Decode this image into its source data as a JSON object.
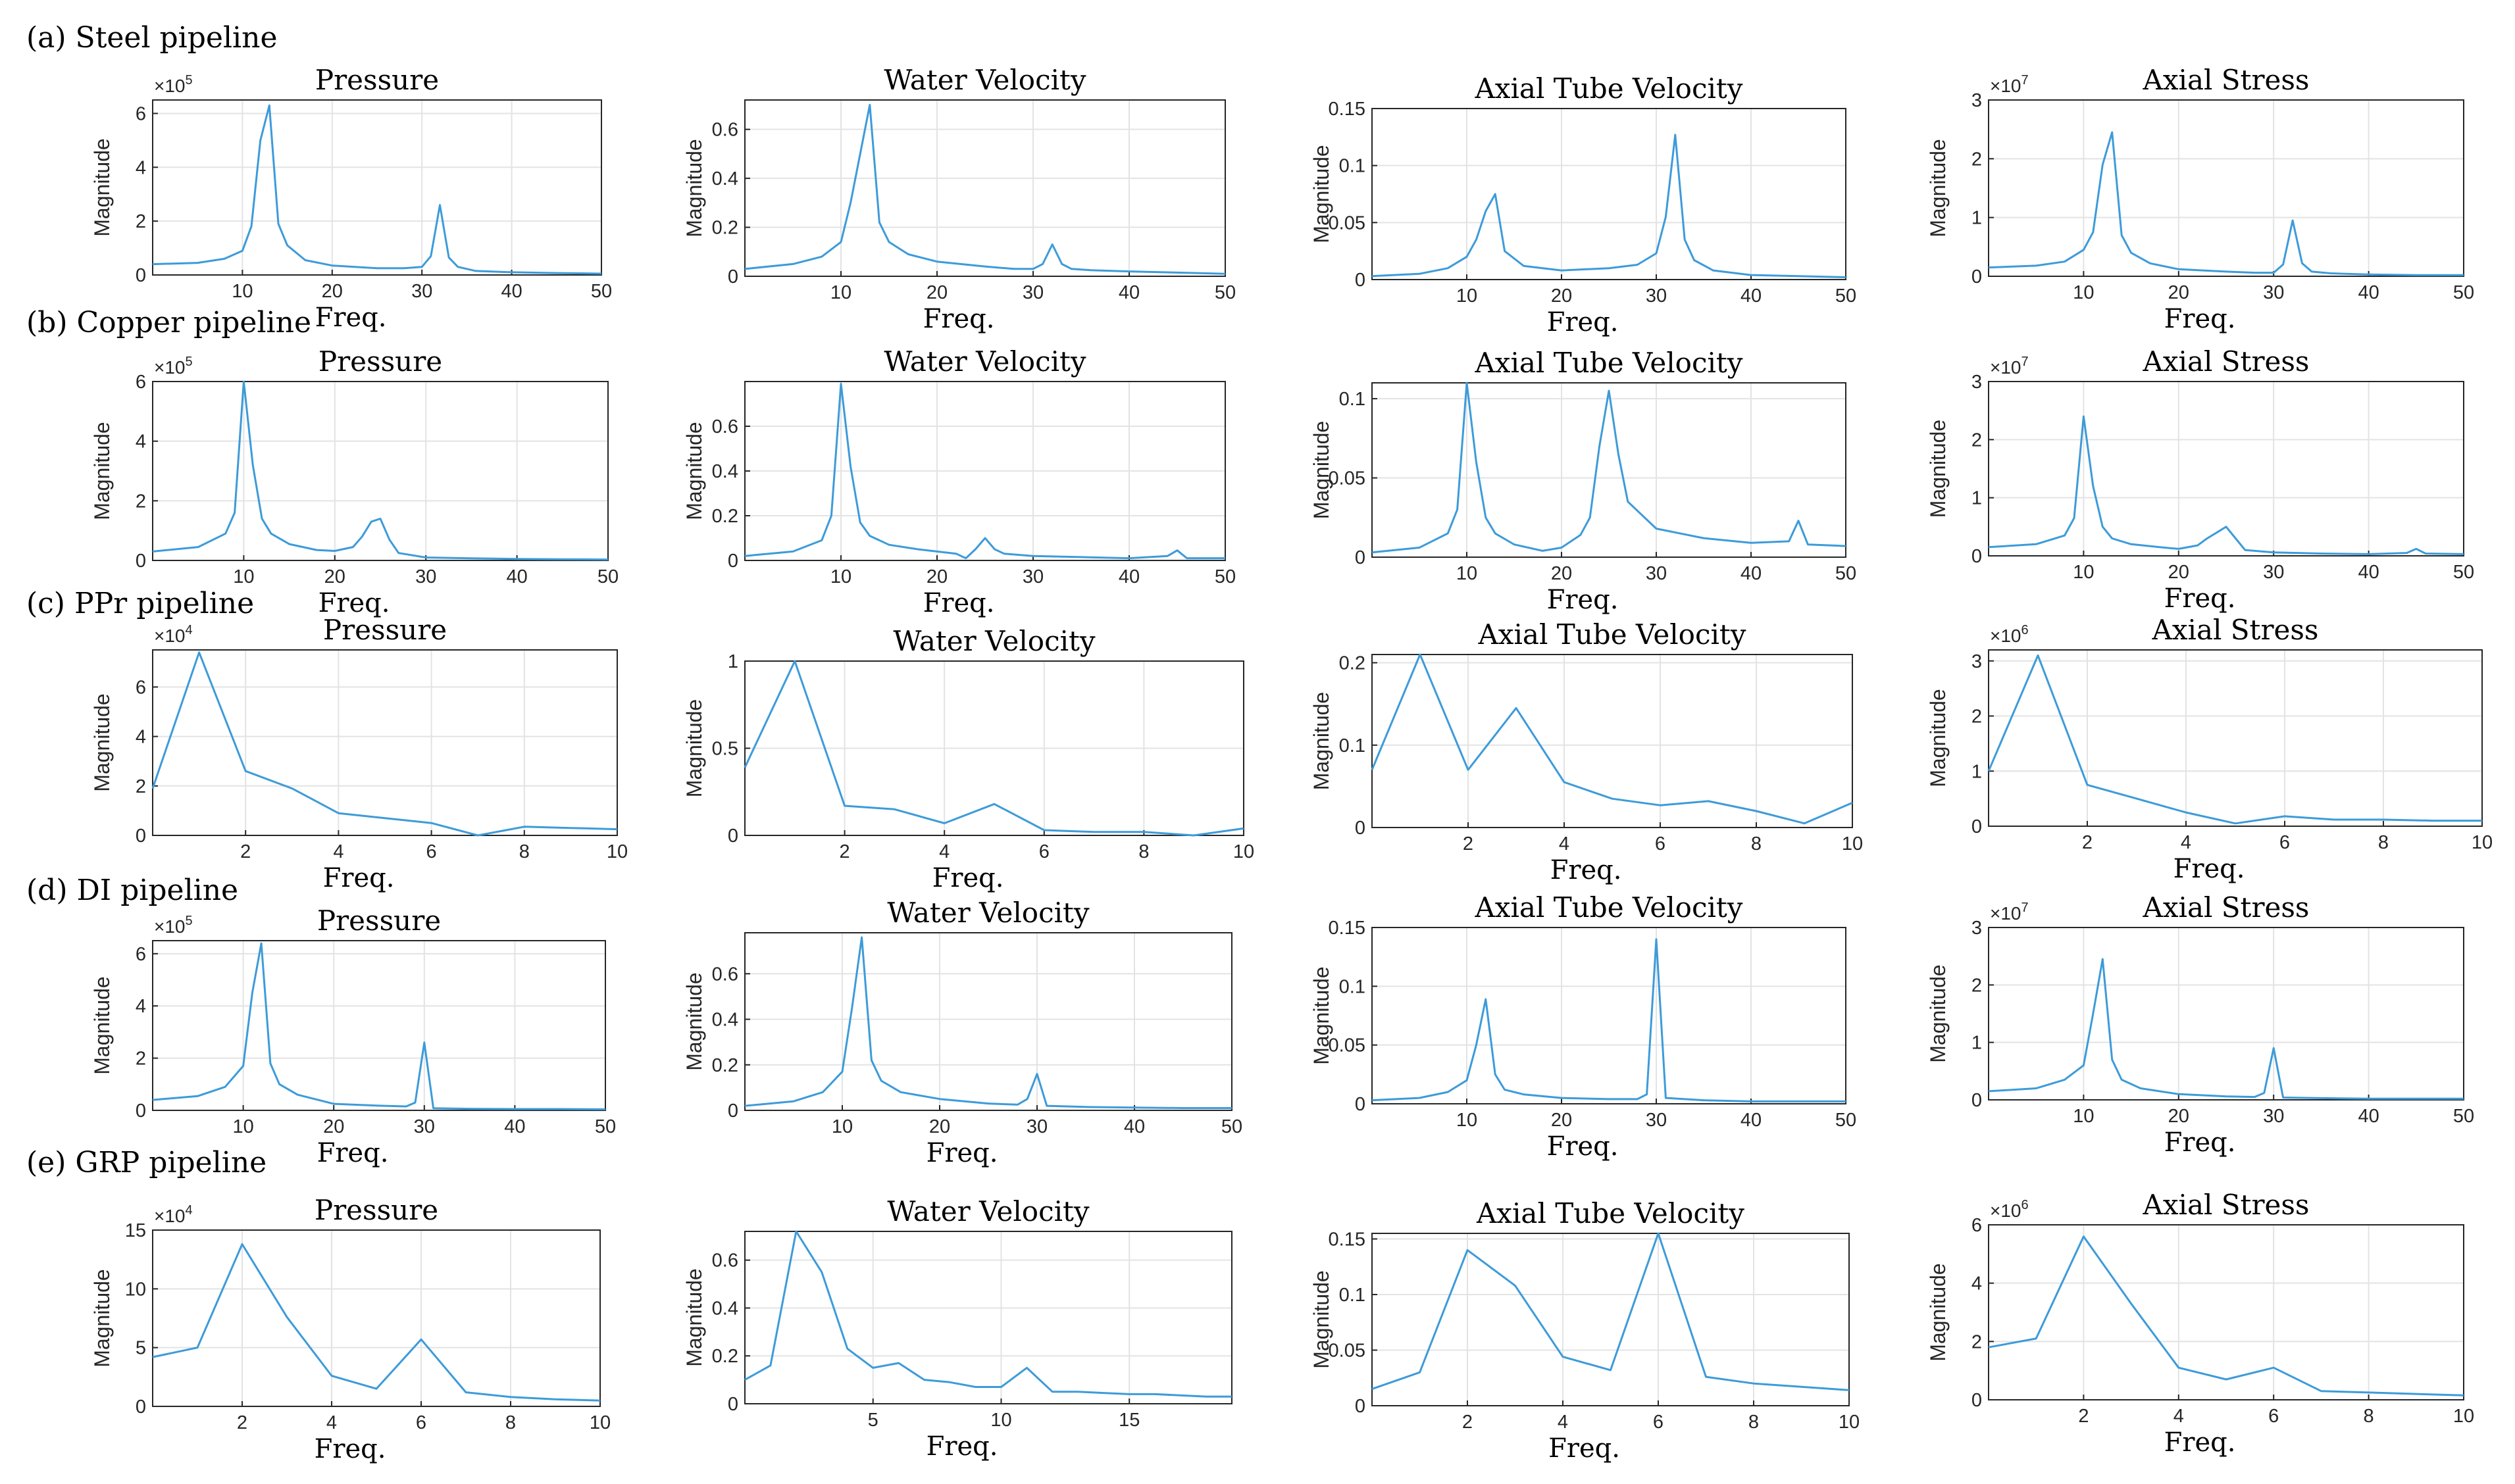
{
  "colors": {
    "line": "#3d9bd9"
  },
  "chart_data": [
    {
      "group": "(a) Steel pipeline",
      "type": "line",
      "title": "Pressure",
      "xlabel": "Freq.",
      "ylabel": "Magnitude",
      "multiplier": "10",
      "multiplier_exp": "5",
      "xlim": [
        0,
        50
      ],
      "ylim": [
        0,
        6.5
      ],
      "xticks": [
        10,
        20,
        30,
        40,
        50
      ],
      "yticks": [
        0,
        2,
        4,
        6
      ],
      "x": [
        0,
        5,
        8,
        10,
        11,
        12,
        13,
        14,
        15,
        17,
        20,
        25,
        28,
        30,
        31,
        32,
        33,
        34,
        36,
        40,
        45,
        50
      ],
      "values": [
        0.4,
        0.45,
        0.6,
        0.9,
        1.8,
        5.0,
        6.3,
        1.9,
        1.1,
        0.55,
        0.35,
        0.25,
        0.25,
        0.3,
        0.7,
        2.6,
        0.65,
        0.3,
        0.15,
        0.1,
        0.07,
        0.05
      ]
    },
    {
      "group": "(a) Steel pipeline",
      "type": "line",
      "title": "Water Velocity",
      "xlabel": "Freq.",
      "ylabel": "Magnitude",
      "xlim": [
        0,
        50
      ],
      "ylim": [
        0,
        0.72
      ],
      "xticks": [
        10,
        20,
        30,
        40,
        50
      ],
      "yticks": [
        0,
        0.2,
        0.4,
        0.6
      ],
      "x": [
        0,
        5,
        8,
        10,
        11,
        12,
        13,
        14,
        15,
        17,
        20,
        25,
        28,
        30,
        31,
        32,
        33,
        34,
        36,
        40,
        45,
        50
      ],
      "values": [
        0.03,
        0.05,
        0.08,
        0.14,
        0.3,
        0.5,
        0.7,
        0.22,
        0.14,
        0.09,
        0.06,
        0.04,
        0.03,
        0.03,
        0.05,
        0.13,
        0.05,
        0.03,
        0.025,
        0.02,
        0.015,
        0.01
      ]
    },
    {
      "group": "(a) Steel pipeline",
      "type": "line",
      "title": "Axial Tube Velocity",
      "xlabel": "Freq.",
      "ylabel": "Magnitude",
      "xlim": [
        0,
        50
      ],
      "ylim": [
        0,
        0.15
      ],
      "xticks": [
        10,
        20,
        30,
        40,
        50
      ],
      "yticks": [
        0,
        0.05,
        0.1,
        0.15
      ],
      "x": [
        0,
        5,
        8,
        10,
        11,
        12,
        13,
        14,
        16,
        20,
        25,
        28,
        30,
        31,
        32,
        33,
        34,
        36,
        40,
        45,
        50
      ],
      "values": [
        0.003,
        0.005,
        0.01,
        0.02,
        0.035,
        0.06,
        0.075,
        0.025,
        0.012,
        0.008,
        0.01,
        0.013,
        0.023,
        0.055,
        0.127,
        0.035,
        0.017,
        0.008,
        0.004,
        0.003,
        0.002
      ]
    },
    {
      "group": "(a) Steel pipeline",
      "type": "line",
      "title": "Axial Stress",
      "xlabel": "Freq.",
      "ylabel": "Magnitude",
      "multiplier": "10",
      "multiplier_exp": "7",
      "xlim": [
        0,
        50
      ],
      "ylim": [
        0,
        3
      ],
      "xticks": [
        10,
        20,
        30,
        40,
        50
      ],
      "yticks": [
        0,
        1,
        2,
        3
      ],
      "x": [
        0,
        5,
        8,
        10,
        11,
        12,
        13,
        14,
        15,
        17,
        20,
        25,
        28,
        30,
        31,
        32,
        33,
        34,
        36,
        40,
        45,
        50
      ],
      "values": [
        0.15,
        0.18,
        0.25,
        0.45,
        0.75,
        1.9,
        2.45,
        0.7,
        0.4,
        0.22,
        0.12,
        0.08,
        0.06,
        0.06,
        0.2,
        0.95,
        0.22,
        0.08,
        0.05,
        0.03,
        0.02,
        0.02
      ]
    },
    {
      "group": "(b) Copper pipeline",
      "type": "line",
      "title": "Pressure",
      "xlabel": "Freq.",
      "ylabel": "Magnitude",
      "multiplier": "10",
      "multiplier_exp": "5",
      "xlim": [
        0,
        50
      ],
      "ylim": [
        0,
        6
      ],
      "xticks": [
        10,
        20,
        30,
        40,
        50
      ],
      "yticks": [
        0,
        2,
        4,
        6
      ],
      "x": [
        0,
        5,
        8,
        9,
        10,
        11,
        12,
        13,
        15,
        18,
        20,
        22,
        23,
        24,
        25,
        26,
        27,
        30,
        35,
        40,
        45,
        50
      ],
      "values": [
        0.3,
        0.45,
        0.9,
        1.6,
        6.0,
        3.2,
        1.4,
        0.9,
        0.55,
        0.35,
        0.32,
        0.45,
        0.8,
        1.3,
        1.4,
        0.7,
        0.25,
        0.1,
        0.07,
        0.05,
        0.04,
        0.03
      ]
    },
    {
      "group": "(b) Copper pipeline",
      "type": "line",
      "title": "Water Velocity",
      "xlabel": "Freq.",
      "ylabel": "Magnitude",
      "xlim": [
        0,
        50
      ],
      "ylim": [
        0,
        0.8
      ],
      "xticks": [
        10,
        20,
        30,
        40,
        50
      ],
      "yticks": [
        0,
        0.2,
        0.4,
        0.6
      ],
      "x": [
        0,
        5,
        8,
        9,
        10,
        11,
        12,
        13,
        15,
        18,
        20,
        22,
        23,
        24,
        25,
        26,
        27,
        30,
        35,
        40,
        44,
        45,
        46,
        50
      ],
      "values": [
        0.02,
        0.04,
        0.09,
        0.2,
        0.79,
        0.42,
        0.17,
        0.11,
        0.07,
        0.05,
        0.04,
        0.03,
        0.01,
        0.05,
        0.1,
        0.05,
        0.03,
        0.02,
        0.015,
        0.01,
        0.02,
        0.045,
        0.01,
        0.01
      ]
    },
    {
      "group": "(b) Copper pipeline",
      "type": "line",
      "title": "Axial Tube Velocity",
      "xlabel": "Freq.",
      "ylabel": "Magnitude",
      "xlim": [
        0,
        50
      ],
      "ylim": [
        0,
        0.11
      ],
      "xticks": [
        10,
        20,
        30,
        40,
        50
      ],
      "yticks": [
        0,
        0.05,
        0.1
      ],
      "x": [
        0,
        5,
        8,
        9,
        10,
        11,
        12,
        13,
        15,
        18,
        20,
        22,
        23,
        24,
        25,
        26,
        27,
        30,
        35,
        40,
        44,
        45,
        46,
        50
      ],
      "values": [
        0.003,
        0.006,
        0.015,
        0.03,
        0.11,
        0.06,
        0.025,
        0.015,
        0.008,
        0.004,
        0.006,
        0.014,
        0.025,
        0.07,
        0.105,
        0.065,
        0.035,
        0.018,
        0.012,
        0.009,
        0.01,
        0.023,
        0.008,
        0.007
      ]
    },
    {
      "group": "(b) Copper pipeline",
      "type": "line",
      "title": "Axial Stress",
      "xlabel": "Freq.",
      "ylabel": "Magnitude",
      "multiplier": "10",
      "multiplier_exp": "7",
      "xlim": [
        0,
        50
      ],
      "ylim": [
        0,
        3
      ],
      "xticks": [
        10,
        20,
        30,
        40,
        50
      ],
      "yticks": [
        0,
        1,
        2,
        3
      ],
      "x": [
        0,
        5,
        8,
        9,
        10,
        11,
        12,
        13,
        15,
        18,
        20,
        22,
        23,
        24,
        25,
        26,
        27,
        30,
        35,
        40,
        44,
        45,
        46,
        50
      ],
      "values": [
        0.15,
        0.2,
        0.35,
        0.65,
        2.4,
        1.2,
        0.5,
        0.3,
        0.2,
        0.15,
        0.12,
        0.18,
        0.3,
        0.4,
        0.5,
        0.3,
        0.1,
        0.06,
        0.04,
        0.03,
        0.05,
        0.12,
        0.04,
        0.03
      ]
    },
    {
      "group": "(c) PPr pipeline",
      "type": "line",
      "title": "Pressure",
      "xlabel": "Freq.",
      "ylabel": "Magnitude",
      "multiplier": "10",
      "multiplier_exp": "4",
      "xlim": [
        0,
        10
      ],
      "ylim": [
        0,
        7.5
      ],
      "xticks": [
        2,
        4,
        6,
        8,
        10
      ],
      "yticks": [
        0,
        2,
        4,
        6
      ],
      "x": [
        0,
        1,
        2,
        3,
        4,
        5,
        6,
        7,
        8,
        9,
        10
      ],
      "values": [
        1.9,
        7.4,
        2.6,
        1.9,
        0.9,
        0.7,
        0.5,
        0.0,
        0.35,
        0.3,
        0.25
      ]
    },
    {
      "group": "(c) PPr pipeline",
      "type": "line",
      "title": "Water Velocity",
      "xlabel": "Freq.",
      "ylabel": "Magnitude",
      "xlim": [
        0,
        10
      ],
      "ylim": [
        0,
        1
      ],
      "xticks": [
        2,
        4,
        6,
        8,
        10
      ],
      "yticks": [
        0,
        0.5,
        1
      ],
      "x": [
        0,
        1,
        2,
        3,
        4,
        5,
        6,
        7,
        8,
        9,
        10
      ],
      "values": [
        0.39,
        1.0,
        0.17,
        0.15,
        0.07,
        0.18,
        0.03,
        0.02,
        0.02,
        0.0,
        0.04
      ]
    },
    {
      "group": "(c) PPr pipeline",
      "type": "line",
      "title": "Axial Tube Velocity",
      "xlabel": "Freq.",
      "ylabel": "Magnitude",
      "xlim": [
        0,
        10
      ],
      "ylim": [
        0,
        0.21
      ],
      "xticks": [
        2,
        4,
        6,
        8,
        10
      ],
      "yticks": [
        0,
        0.1,
        0.2
      ],
      "x": [
        0,
        1,
        2,
        3,
        4,
        5,
        6,
        7,
        8,
        9,
        10
      ],
      "values": [
        0.07,
        0.21,
        0.07,
        0.145,
        0.055,
        0.035,
        0.027,
        0.032,
        0.02,
        0.005,
        0.03
      ]
    },
    {
      "group": "(c) PPr pipeline",
      "type": "line",
      "title": "Axial Stress",
      "xlabel": "Freq.",
      "ylabel": "Magnitude",
      "multiplier": "10",
      "multiplier_exp": "6",
      "xlim": [
        0,
        10
      ],
      "ylim": [
        0,
        3.2
      ],
      "xticks": [
        2,
        4,
        6,
        8,
        10
      ],
      "yticks": [
        0,
        1,
        2,
        3
      ],
      "x": [
        0,
        1,
        2,
        3,
        4,
        5,
        6,
        7,
        8,
        9,
        10
      ],
      "values": [
        1.0,
        3.1,
        0.75,
        0.5,
        0.25,
        0.05,
        0.18,
        0.12,
        0.12,
        0.1,
        0.1
      ]
    },
    {
      "group": "(d) DI pipeline",
      "type": "line",
      "title": "Pressure",
      "xlabel": "Freq.",
      "ylabel": "Magnitude",
      "multiplier": "10",
      "multiplier_exp": "5",
      "xlim": [
        0,
        50
      ],
      "ylim": [
        0,
        6.5
      ],
      "xticks": [
        10,
        20,
        30,
        40,
        50
      ],
      "yticks": [
        0,
        2,
        4,
        6
      ],
      "x": [
        0,
        5,
        8,
        10,
        11,
        12,
        13,
        14,
        16,
        20,
        25,
        28,
        29,
        30,
        31,
        35,
        40,
        45,
        50
      ],
      "values": [
        0.4,
        0.55,
        0.9,
        1.7,
        4.5,
        6.4,
        1.8,
        1.0,
        0.6,
        0.25,
        0.18,
        0.15,
        0.3,
        2.6,
        0.08,
        0.06,
        0.05,
        0.05,
        0.04
      ]
    },
    {
      "group": "(d) DI pipeline",
      "type": "line",
      "title": "Water Velocity",
      "xlabel": "Freq.",
      "ylabel": "Magnitude",
      "xlim": [
        0,
        50
      ],
      "ylim": [
        0,
        0.78
      ],
      "xticks": [
        10,
        20,
        30,
        40,
        50
      ],
      "yticks": [
        0,
        0.2,
        0.4,
        0.6
      ],
      "x": [
        0,
        5,
        8,
        10,
        11,
        12,
        13,
        14,
        16,
        20,
        25,
        28,
        29,
        30,
        31,
        35,
        40,
        45,
        50
      ],
      "values": [
        0.02,
        0.04,
        0.08,
        0.17,
        0.45,
        0.76,
        0.22,
        0.13,
        0.08,
        0.05,
        0.03,
        0.025,
        0.05,
        0.16,
        0.02,
        0.015,
        0.012,
        0.01,
        0.01
      ]
    },
    {
      "group": "(d) DI pipeline",
      "type": "line",
      "title": "Axial Tube Velocity",
      "xlabel": "Freq.",
      "ylabel": "Magnitude",
      "xlim": [
        0,
        50
      ],
      "ylim": [
        0,
        0.15
      ],
      "xticks": [
        10,
        20,
        30,
        40,
        50
      ],
      "yticks": [
        0,
        0.05,
        0.1,
        0.15
      ],
      "x": [
        0,
        5,
        8,
        10,
        11,
        12,
        13,
        14,
        16,
        20,
        25,
        28,
        29,
        30,
        31,
        35,
        40,
        45,
        50
      ],
      "values": [
        0.003,
        0.005,
        0.01,
        0.02,
        0.05,
        0.089,
        0.025,
        0.012,
        0.008,
        0.005,
        0.004,
        0.004,
        0.008,
        0.14,
        0.005,
        0.003,
        0.002,
        0.002,
        0.002
      ]
    },
    {
      "group": "(d) DI pipeline",
      "type": "line",
      "title": "Axial Stress",
      "xlabel": "Freq.",
      "ylabel": "Magnitude",
      "multiplier": "10",
      "multiplier_exp": "7",
      "xlim": [
        0,
        50
      ],
      "ylim": [
        0,
        3
      ],
      "xticks": [
        10,
        20,
        30,
        40,
        50
      ],
      "yticks": [
        0,
        1,
        2,
        3
      ],
      "x": [
        0,
        5,
        8,
        10,
        11,
        12,
        13,
        14,
        16,
        20,
        25,
        28,
        29,
        30,
        31,
        35,
        40,
        45,
        50
      ],
      "values": [
        0.15,
        0.2,
        0.35,
        0.6,
        1.5,
        2.45,
        0.7,
        0.35,
        0.2,
        0.1,
        0.06,
        0.05,
        0.12,
        0.9,
        0.04,
        0.03,
        0.02,
        0.02,
        0.02
      ]
    },
    {
      "group": "(e) GRP pipeline",
      "type": "line",
      "title": "Pressure",
      "xlabel": "Freq.",
      "ylabel": "Magnitude",
      "multiplier": "10",
      "multiplier_exp": "4",
      "xlim": [
        0,
        10
      ],
      "ylim": [
        0,
        15
      ],
      "xticks": [
        2,
        4,
        6,
        8,
        10
      ],
      "yticks": [
        0,
        5,
        10,
        15
      ],
      "x": [
        0,
        1,
        2,
        3,
        4,
        5,
        6,
        7,
        8,
        9,
        10
      ],
      "values": [
        4.2,
        5.0,
        13.8,
        7.6,
        2.6,
        1.5,
        5.7,
        1.2,
        0.8,
        0.6,
        0.5
      ]
    },
    {
      "group": "(e) GRP pipeline",
      "type": "line",
      "title": "Water Velocity",
      "xlabel": "Freq.",
      "ylabel": "Magnitude",
      "xlim": [
        0,
        19
      ],
      "ylim": [
        0,
        0.72
      ],
      "xticks": [
        5,
        10,
        15
      ],
      "yticks": [
        0,
        0.2,
        0.4,
        0.6
      ],
      "x": [
        0,
        1,
        2,
        3,
        4,
        5,
        6,
        7,
        8,
        9,
        10,
        11,
        12,
        13,
        14,
        15,
        16,
        17,
        18,
        19
      ],
      "values": [
        0.1,
        0.16,
        0.72,
        0.55,
        0.23,
        0.15,
        0.17,
        0.1,
        0.09,
        0.07,
        0.07,
        0.15,
        0.05,
        0.05,
        0.045,
        0.04,
        0.04,
        0.035,
        0.03,
        0.03
      ]
    },
    {
      "group": "(e) GRP pipeline",
      "type": "line",
      "title": "Axial Tube Velocity",
      "xlabel": "Freq.",
      "ylabel": "Magnitude",
      "xlim": [
        0,
        10
      ],
      "ylim": [
        0,
        0.155
      ],
      "xticks": [
        2,
        4,
        6,
        8,
        10
      ],
      "yticks": [
        0,
        0.05,
        0.1,
        0.15
      ],
      "x": [
        0,
        1,
        2,
        3,
        4,
        5,
        6,
        7,
        8,
        9,
        10
      ],
      "values": [
        0.015,
        0.03,
        0.14,
        0.108,
        0.044,
        0.032,
        0.155,
        0.026,
        0.02,
        0.017,
        0.014
      ]
    },
    {
      "group": "(e) GRP pipeline",
      "type": "line",
      "title": "Axial Stress",
      "xlabel": "Freq.",
      "ylabel": "Magnitude",
      "multiplier": "10",
      "multiplier_exp": "6",
      "xlim": [
        0,
        10
      ],
      "ylim": [
        0,
        6
      ],
      "xticks": [
        2,
        4,
        6,
        8,
        10
      ],
      "yticks": [
        0,
        2,
        4,
        6
      ],
      "x": [
        0,
        1,
        2,
        3,
        4,
        5,
        6,
        7,
        8,
        9,
        10
      ],
      "values": [
        1.8,
        2.1,
        5.6,
        3.3,
        1.1,
        0.7,
        1.1,
        0.3,
        0.25,
        0.2,
        0.15
      ]
    }
  ]
}
